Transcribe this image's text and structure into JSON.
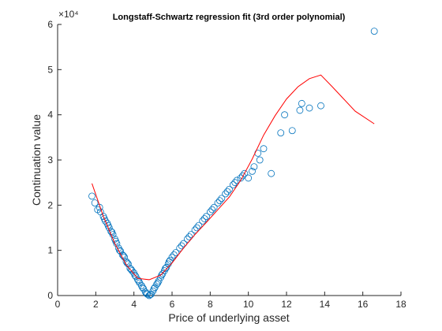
{
  "chart_data": {
    "type": "scatter",
    "title": "Longstaff-Schwartz regression fit (3rd order polynomial)",
    "xlabel": "Price of underlying asset",
    "ylabel": "Continuation value",
    "y_exponent_label": "×10⁴",
    "xlim": [
      0,
      18
    ],
    "ylim": [
      0,
      6
    ],
    "x_ticks": [
      "0",
      "2",
      "4",
      "6",
      "8",
      "10",
      "12",
      "14",
      "16",
      "18"
    ],
    "y_ticks": [
      "0",
      "1",
      "2",
      "3",
      "4",
      "5",
      "6"
    ],
    "grid": false,
    "colors": {
      "scatter": "#0072BD",
      "fit": "#FF0000",
      "axis": "#262626"
    },
    "series": [
      {
        "kind": "scatter",
        "points": [
          [
            1.8,
            2.2
          ],
          [
            1.95,
            2.05
          ],
          [
            2.1,
            1.9
          ],
          [
            2.25,
            1.85
          ],
          [
            2.4,
            1.75
          ],
          [
            2.5,
            1.65
          ],
          [
            2.6,
            1.6
          ],
          [
            2.7,
            1.5
          ],
          [
            2.8,
            1.42
          ],
          [
            2.9,
            1.35
          ],
          [
            3.0,
            1.25
          ],
          [
            3.1,
            1.15
          ],
          [
            3.2,
            1.05
          ],
          [
            3.3,
            0.98
          ],
          [
            3.4,
            0.9
          ],
          [
            3.5,
            0.85
          ],
          [
            3.6,
            0.75
          ],
          [
            3.7,
            0.7
          ],
          [
            3.8,
            0.6
          ],
          [
            3.9,
            0.55
          ],
          [
            4.0,
            0.5
          ],
          [
            4.1,
            0.42
          ],
          [
            4.2,
            0.35
          ],
          [
            4.3,
            0.28
          ],
          [
            4.4,
            0.22
          ],
          [
            4.5,
            0.15
          ],
          [
            4.6,
            0.08
          ],
          [
            4.7,
            0.03
          ],
          [
            4.8,
            0.0
          ],
          [
            4.9,
            0.03
          ],
          [
            5.0,
            0.1
          ],
          [
            5.1,
            0.18
          ],
          [
            5.2,
            0.25
          ],
          [
            5.3,
            0.32
          ],
          [
            5.4,
            0.4
          ],
          [
            5.5,
            0.48
          ],
          [
            5.6,
            0.55
          ],
          [
            5.7,
            0.62
          ],
          [
            5.8,
            0.7
          ],
          [
            5.9,
            0.78
          ],
          [
            6.0,
            0.85
          ],
          [
            6.2,
            0.95
          ],
          [
            6.4,
            1.05
          ],
          [
            6.6,
            1.15
          ],
          [
            6.8,
            1.25
          ],
          [
            7.0,
            1.35
          ],
          [
            7.2,
            1.45
          ],
          [
            7.4,
            1.55
          ],
          [
            7.6,
            1.65
          ],
          [
            7.8,
            1.75
          ],
          [
            8.0,
            1.85
          ],
          [
            8.2,
            1.95
          ],
          [
            8.4,
            2.05
          ],
          [
            8.6,
            2.15
          ],
          [
            8.8,
            2.25
          ],
          [
            9.0,
            2.35
          ],
          [
            9.2,
            2.45
          ],
          [
            9.4,
            2.55
          ],
          [
            9.6,
            2.6
          ],
          [
            9.8,
            2.7
          ],
          [
            10.0,
            2.6
          ],
          [
            10.2,
            2.75
          ],
          [
            10.5,
            3.15
          ],
          [
            10.8,
            3.25
          ],
          [
            11.2,
            2.7
          ],
          [
            11.7,
            3.6
          ],
          [
            11.9,
            4.0
          ],
          [
            12.3,
            3.65
          ],
          [
            12.8,
            4.25
          ],
          [
            13.2,
            4.15
          ],
          [
            13.8,
            4.2
          ],
          [
            16.6,
            5.85
          ],
          [
            2.2,
            1.95
          ],
          [
            2.45,
            1.7
          ],
          [
            2.65,
            1.55
          ],
          [
            2.85,
            1.4
          ],
          [
            3.05,
            1.2
          ],
          [
            3.25,
            1.0
          ],
          [
            3.45,
            0.88
          ],
          [
            3.65,
            0.72
          ],
          [
            3.85,
            0.58
          ],
          [
            4.05,
            0.45
          ],
          [
            4.25,
            0.32
          ],
          [
            4.45,
            0.18
          ],
          [
            4.65,
            0.05
          ],
          [
            4.85,
            0.02
          ],
          [
            5.05,
            0.15
          ],
          [
            5.25,
            0.28
          ],
          [
            5.45,
            0.45
          ],
          [
            5.65,
            0.6
          ],
          [
            5.85,
            0.75
          ],
          [
            6.1,
            0.9
          ],
          [
            6.5,
            1.1
          ],
          [
            6.9,
            1.3
          ],
          [
            7.3,
            1.5
          ],
          [
            7.7,
            1.7
          ],
          [
            8.1,
            1.9
          ],
          [
            8.5,
            2.1
          ],
          [
            8.9,
            2.3
          ],
          [
            9.3,
            2.5
          ],
          [
            9.7,
            2.65
          ],
          [
            10.3,
            2.85
          ],
          [
            10.6,
            3.0
          ],
          [
            12.7,
            4.1
          ]
        ]
      },
      {
        "kind": "line",
        "points": [
          [
            1.8,
            2.48
          ],
          [
            2.4,
            1.75
          ],
          [
            3.0,
            1.15
          ],
          [
            3.6,
            0.68
          ],
          [
            4.2,
            0.38
          ],
          [
            4.8,
            0.35
          ],
          [
            5.4,
            0.45
          ],
          [
            6.0,
            0.72
          ],
          [
            6.6,
            1.05
          ],
          [
            7.2,
            1.35
          ],
          [
            7.8,
            1.62
          ],
          [
            8.4,
            1.9
          ],
          [
            9.0,
            2.18
          ],
          [
            9.6,
            2.55
          ],
          [
            10.2,
            3.02
          ],
          [
            10.8,
            3.55
          ],
          [
            11.4,
            3.98
          ],
          [
            12.0,
            4.35
          ],
          [
            12.6,
            4.62
          ],
          [
            13.2,
            4.8
          ],
          [
            13.8,
            4.88
          ],
          [
            14.4,
            4.62
          ],
          [
            15.0,
            4.35
          ],
          [
            15.6,
            4.08
          ],
          [
            16.6,
            3.8
          ]
        ]
      }
    ]
  }
}
